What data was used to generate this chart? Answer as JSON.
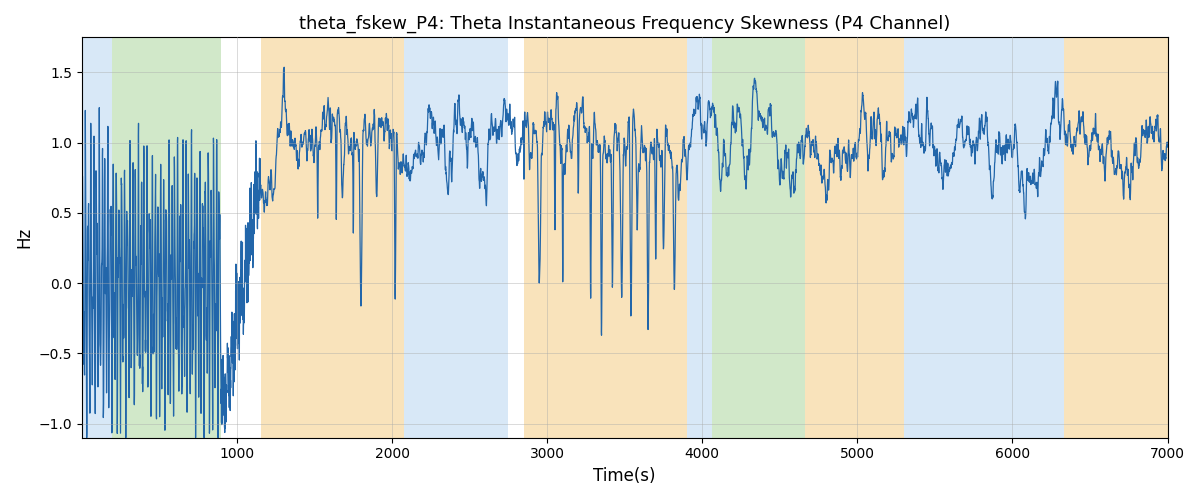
{
  "title": "theta_fskew_P4: Theta Instantaneous Frequency Skewness (P4 Channel)",
  "xlabel": "Time(s)",
  "ylabel": "Hz",
  "xlim": [
    0,
    7000
  ],
  "ylim": [
    -1.1,
    1.75
  ],
  "yticks": [
    -1.0,
    -0.5,
    0.0,
    0.5,
    1.0,
    1.5
  ],
  "xticks": [
    1000,
    2000,
    3000,
    4000,
    5000,
    6000,
    7000
  ],
  "bg_bands": [
    {
      "xmin": 0,
      "xmax": 195,
      "color": "#aaccee",
      "alpha": 0.45
    },
    {
      "xmin": 195,
      "xmax": 895,
      "color": "#99cc88",
      "alpha": 0.45
    },
    {
      "xmin": 1155,
      "xmax": 2080,
      "color": "#f5c878",
      "alpha": 0.5
    },
    {
      "xmin": 2080,
      "xmax": 2750,
      "color": "#aaccee",
      "alpha": 0.45
    },
    {
      "xmin": 2850,
      "xmax": 3900,
      "color": "#f5c878",
      "alpha": 0.5
    },
    {
      "xmin": 3900,
      "xmax": 4060,
      "color": "#aaccee",
      "alpha": 0.45
    },
    {
      "xmin": 4060,
      "xmax": 4660,
      "color": "#99cc88",
      "alpha": 0.45
    },
    {
      "xmin": 4660,
      "xmax": 5300,
      "color": "#f5c878",
      "alpha": 0.5
    },
    {
      "xmin": 5300,
      "xmax": 6330,
      "color": "#aaccee",
      "alpha": 0.45
    },
    {
      "xmin": 6330,
      "xmax": 7000,
      "color": "#f5c878",
      "alpha": 0.5
    }
  ],
  "line_color": "#2266aa",
  "line_width": 0.9,
  "grid_color": "#aaaaaa",
  "grid_alpha": 0.6,
  "fig_width": 12.0,
  "fig_height": 5.0,
  "dpi": 100
}
